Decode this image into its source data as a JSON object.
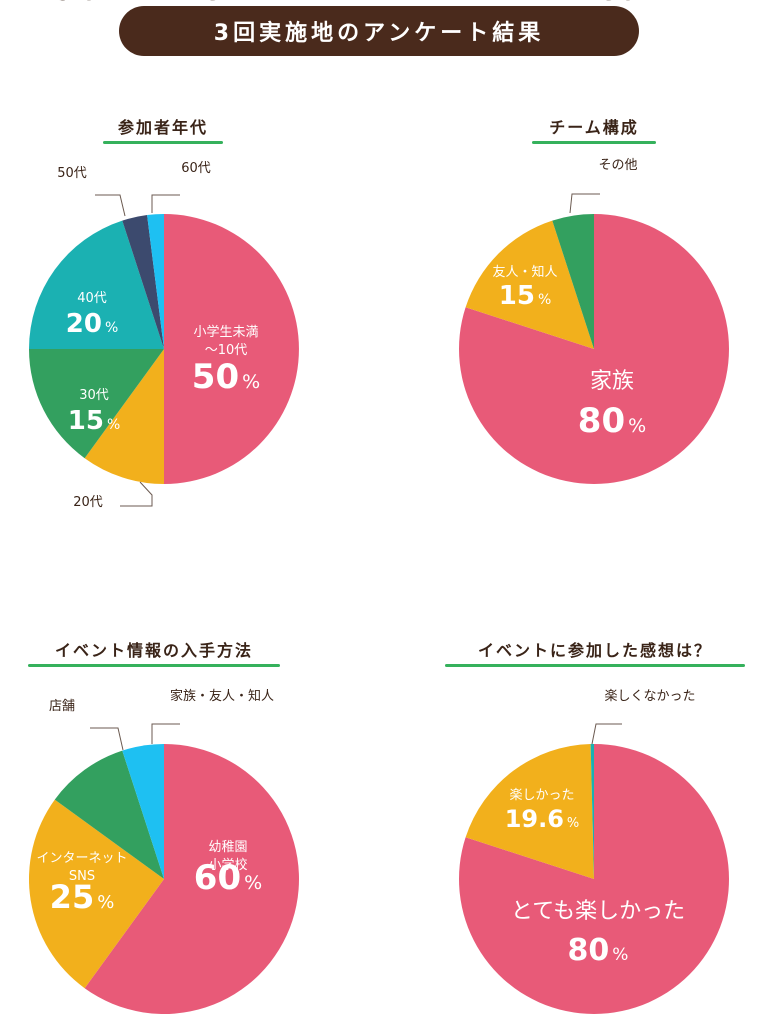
{
  "page_title": "3回実施地のアンケート結果",
  "colors": {
    "banner": "#4a2a1c",
    "underline": "#35b15c",
    "pink": "#e85a78",
    "yellow": "#f2b01c",
    "green": "#33a05f",
    "teal": "#1bb1b2",
    "navy": "#3c4a6e",
    "cyan": "#1ec0f2"
  },
  "chart_data": [
    {
      "type": "pie",
      "title": "参加者年代",
      "series": [
        {
          "name": "小学生未満 〜10代",
          "value": 50,
          "value_label": "50",
          "color": "#e85a78",
          "label_lines": [
            "小学生未満",
            "〜10代"
          ]
        },
        {
          "name": "20代",
          "value": 10,
          "value_label": "10",
          "color": "#f2b01c",
          "label_lines": [
            "20代"
          ]
        },
        {
          "name": "30代",
          "value": 15,
          "value_label": "15",
          "color": "#33a05f",
          "label_lines": [
            "30代"
          ]
        },
        {
          "name": "40代",
          "value": 20,
          "value_label": "20",
          "color": "#1bb1b2",
          "label_lines": [
            "40代"
          ]
        },
        {
          "name": "50代",
          "value": 3,
          "value_label": "3",
          "color": "#3c4a6e",
          "label_lines": [
            "50代"
          ]
        },
        {
          "name": "60代",
          "value": 2,
          "value_label": "2",
          "color": "#1ec0f2",
          "label_lines": [
            "60代"
          ]
        }
      ],
      "unit": "%"
    },
    {
      "type": "pie",
      "title": "チーム構成",
      "series": [
        {
          "name": "家族",
          "value": 80,
          "value_label": "80",
          "color": "#e85a78",
          "label_lines": [
            "家族"
          ]
        },
        {
          "name": "友人・知人",
          "value": 15,
          "value_label": "15",
          "color": "#f2b01c",
          "label_lines": [
            "友人・知人"
          ]
        },
        {
          "name": "その他",
          "value": 5,
          "value_label": "5",
          "color": "#33a05f",
          "label_lines": [
            "その他"
          ]
        }
      ],
      "unit": "%"
    },
    {
      "type": "pie",
      "title": "イベント情報の入手方法",
      "series": [
        {
          "name": "幼稚園 小学校",
          "value": 60,
          "value_label": "60",
          "color": "#e85a78",
          "label_lines": [
            "幼稚園",
            "小学校"
          ]
        },
        {
          "name": "インターネット SNS",
          "value": 25,
          "value_label": "25",
          "color": "#f2b01c",
          "label_lines": [
            "インターネット",
            "SNS"
          ]
        },
        {
          "name": "店舗",
          "value": 10,
          "value_label": "10",
          "color": "#33a05f",
          "label_lines": [
            "店舗"
          ]
        },
        {
          "name": "家族・友人・知人",
          "value": 5,
          "value_label": "5",
          "color": "#1ec0f2",
          "label_lines": [
            "家族・友人・知人"
          ]
        }
      ],
      "unit": "%"
    },
    {
      "type": "pie",
      "title": "イベントに参加した感想は？",
      "series": [
        {
          "name": "とても楽しかった",
          "value": 80,
          "value_label": "80",
          "color": "#e85a78",
          "label_lines": [
            "とても楽しかった"
          ]
        },
        {
          "name": "楽しかった",
          "value": 19.6,
          "value_label": "19.6",
          "color": "#f2b01c",
          "label_lines": [
            "楽しかった"
          ]
        },
        {
          "name": "楽しくなかった",
          "value": 0.4,
          "value_label": "0.4",
          "color": "#1bb1b2",
          "label_lines": [
            "楽しくなかった"
          ]
        }
      ],
      "unit": "%"
    }
  ]
}
